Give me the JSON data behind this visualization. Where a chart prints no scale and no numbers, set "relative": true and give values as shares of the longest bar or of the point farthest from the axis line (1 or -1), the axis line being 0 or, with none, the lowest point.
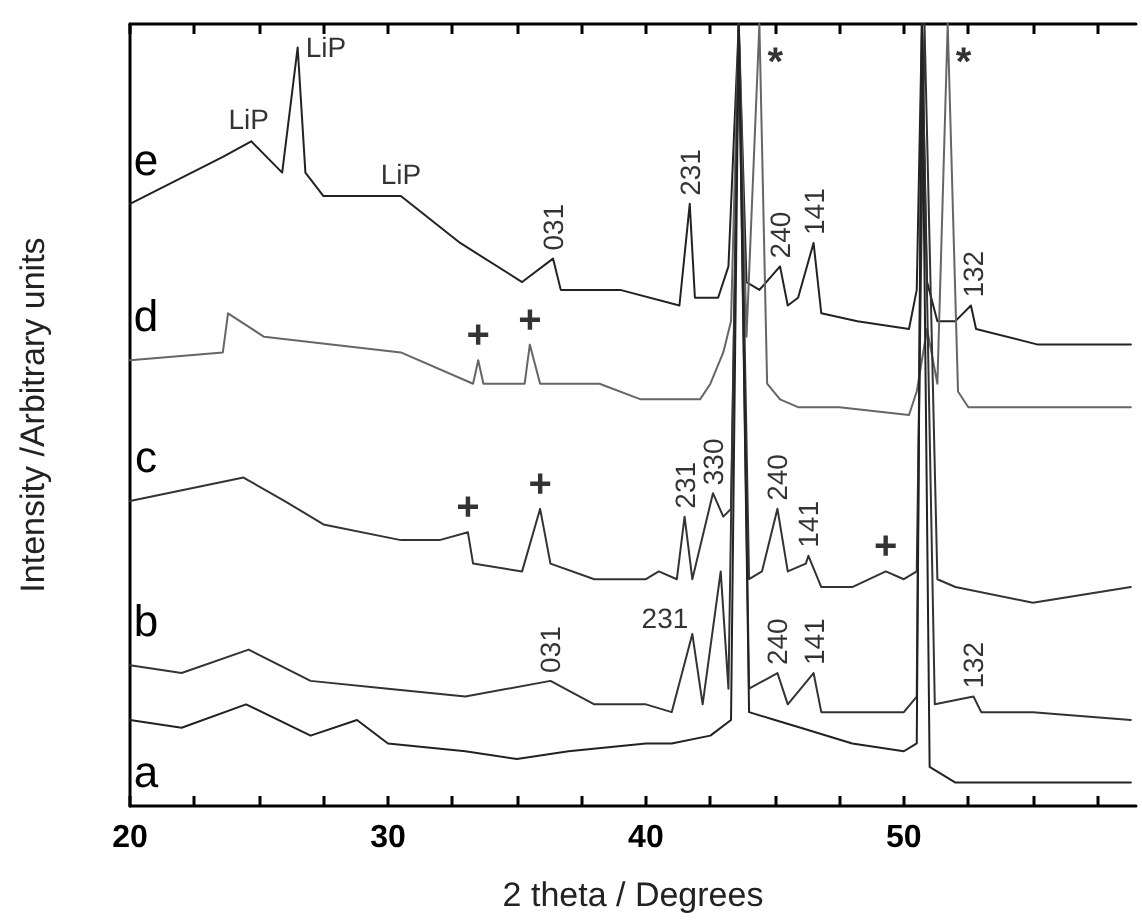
{
  "chart_data": {
    "type": "line",
    "relative": true,
    "xlabel": "2 theta / Degrees",
    "ylabel": "Intensity /Arbitrary units",
    "xlim": [
      20,
      59
    ],
    "xticks": [
      20,
      {
        "value": 22.5,
        "label": null
      },
      {
        "value": 25,
        "label": null
      },
      {
        "value": 27.5,
        "label": null
      },
      30,
      {
        "value": 32.5,
        "label": null
      },
      {
        "value": 35,
        "label": null
      },
      {
        "value": 37.5,
        "label": null
      },
      40,
      {
        "value": 42.5,
        "label": null
      },
      {
        "value": 45,
        "label": null
      },
      {
        "value": 47.5,
        "label": null
      },
      50,
      {
        "value": 52.5,
        "label": null
      },
      {
        "value": 55,
        "label": null
      },
      {
        "value": 57.5,
        "label": null
      }
    ],
    "grid": false,
    "legend": false,
    "marker": "none",
    "line_style": "solid",
    "series": [
      {
        "name": "e",
        "color": "#222222",
        "x": [
          20,
          23.6,
          24.7,
          25.9,
          26.5,
          26.8,
          27.5,
          30.5,
          32.8,
          35.2,
          36.4,
          36.7,
          39,
          41.3,
          41.7,
          41.9,
          42.8,
          43.2,
          43.6,
          43.9,
          44.4,
          45.2,
          45.5,
          45.9,
          46.5,
          46.8,
          48.2,
          50.2,
          50.5,
          50.7,
          50.9,
          51.3,
          52,
          52.6,
          52.8,
          55.2,
          58.8
        ],
        "values": [
          0.77,
          0.83,
          0.85,
          0.81,
          0.97,
          0.81,
          0.78,
          0.78,
          0.72,
          0.67,
          0.7,
          0.66,
          0.66,
          0.64,
          0.77,
          0.65,
          0.65,
          0.69,
          1,
          0.67,
          0.66,
          0.69,
          0.64,
          0.65,
          0.72,
          0.63,
          0.62,
          0.61,
          0.66,
          1,
          0.67,
          0.62,
          0.62,
          0.64,
          0.61,
          0.59,
          0.59
        ]
      },
      {
        "name": "d",
        "color": "#666666",
        "x": [
          20,
          23.6,
          23.8,
          25.2,
          30.5,
          33.3,
          33.5,
          33.7,
          35.3,
          35.5,
          35.9,
          38.2,
          39.8,
          42.1,
          42.5,
          43,
          43.3,
          43.6,
          43.9,
          44.4,
          44.7,
          45.2,
          45.9,
          47.5,
          50.2,
          50.5,
          50.9,
          51.3,
          51.7,
          52.1,
          52.5,
          55.2,
          58.8
        ],
        "values": [
          0.57,
          0.58,
          0.63,
          0.6,
          0.58,
          0.54,
          0.57,
          0.54,
          0.54,
          0.59,
          0.54,
          0.54,
          0.52,
          0.52,
          0.54,
          0.58,
          0.62,
          1,
          0.6,
          1,
          0.54,
          0.52,
          0.51,
          0.51,
          0.5,
          0.53,
          0.61,
          0.54,
          1,
          0.53,
          0.51,
          0.51,
          0.51
        ]
      },
      {
        "name": "c",
        "color": "#333333",
        "x": [
          20,
          24.4,
          26,
          27.5,
          30.5,
          32,
          33.1,
          33.3,
          35.2,
          35.9,
          36.3,
          38,
          40,
          40.5,
          41.2,
          41.5,
          41.8,
          42.6,
          43,
          43.3,
          43.6,
          44,
          44.5,
          45.1,
          45.5,
          46.2,
          46.3,
          46.8,
          48,
          49.3,
          50,
          50.5,
          50.8,
          51.3,
          52,
          55,
          58.8
        ],
        "values": [
          0.39,
          0.42,
          0.39,
          0.36,
          0.34,
          0.34,
          0.35,
          0.31,
          0.3,
          0.38,
          0.31,
          0.29,
          0.29,
          0.3,
          0.29,
          0.37,
          0.29,
          0.4,
          0.37,
          0.38,
          1,
          0.29,
          0.3,
          0.38,
          0.3,
          0.31,
          0.32,
          0.28,
          0.28,
          0.3,
          0.29,
          0.3,
          1,
          0.29,
          0.28,
          0.26,
          0.28
        ]
      },
      {
        "name": "b",
        "color": "#333333",
        "x": [
          20,
          22,
          24.6,
          27,
          30,
          33,
          36.3,
          38,
          40,
          41,
          41.8,
          42.2,
          42.9,
          43.2,
          43.6,
          44,
          45.1,
          45.5,
          46.5,
          46.8,
          48,
          50,
          50.5,
          50.7,
          51.2,
          52.7,
          53,
          55,
          58.8
        ],
        "values": [
          0.18,
          0.17,
          0.2,
          0.16,
          0.15,
          0.14,
          0.16,
          0.13,
          0.13,
          0.12,
          0.22,
          0.13,
          0.3,
          0.15,
          1,
          0.15,
          0.17,
          0.13,
          0.17,
          0.12,
          0.12,
          0.12,
          0.14,
          1,
          0.13,
          0.14,
          0.12,
          0.12,
          0.11
        ]
      },
      {
        "name": "a",
        "color": "#222222",
        "x": [
          20,
          22,
          24.5,
          27,
          28.8,
          30,
          33,
          35,
          37,
          40,
          41,
          42.5,
          43.3,
          43.6,
          44,
          45,
          46,
          48,
          50,
          50.5,
          50.7,
          51,
          52,
          55,
          58.8
        ],
        "values": [
          0.11,
          0.1,
          0.13,
          0.09,
          0.11,
          0.08,
          0.07,
          0.06,
          0.07,
          0.08,
          0.08,
          0.09,
          0.11,
          1,
          0.12,
          0.11,
          0.1,
          0.08,
          0.07,
          0.08,
          1,
          0.05,
          0.03,
          0.03,
          0.03
        ]
      }
    ],
    "annotations": [
      {
        "text": "LiP",
        "x": 24.6,
        "y": 0.85
      },
      {
        "text": "LiP",
        "x": 26.5,
        "y": 0.97
      },
      {
        "text": "LiP",
        "x": 30.5,
        "y": 0.78
      },
      {
        "text": "031",
        "x": 36.4,
        "y": 0.7
      },
      {
        "text": "231",
        "x": 41.7,
        "y": 0.77
      },
      {
        "text": "*",
        "x": 44.4,
        "y": 0.95
      },
      {
        "text": "240",
        "x": 45.2,
        "y": 0.69
      },
      {
        "text": "141",
        "x": 46.5,
        "y": 0.72
      },
      {
        "text": "*",
        "x": 51.7,
        "y": 0.95
      },
      {
        "text": "132",
        "x": 52.7,
        "y": 0.64
      },
      {
        "text": "+",
        "x": 33.5,
        "y": 0.57
      },
      {
        "text": "+",
        "x": 35.5,
        "y": 0.59
      },
      {
        "text": "+",
        "x": 33.1,
        "y": 0.35
      },
      {
        "text": "+",
        "x": 35.9,
        "y": 0.38
      },
      {
        "text": "231",
        "x": 41.5,
        "y": 0.37
      },
      {
        "text": "330",
        "x": 42.6,
        "y": 0.4
      },
      {
        "text": "240",
        "x": 45.1,
        "y": 0.38
      },
      {
        "text": "141",
        "x": 46.3,
        "y": 0.32
      },
      {
        "text": "+",
        "x": 49.3,
        "y": 0.3
      },
      {
        "text": "031",
        "x": 36.3,
        "y": 0.16
      },
      {
        "text": "231",
        "x": 41.8,
        "y": 0.22
      },
      {
        "text": "240",
        "x": 45.1,
        "y": 0.17
      },
      {
        "text": "141",
        "x": 46.5,
        "y": 0.17
      },
      {
        "text": "132",
        "x": 52.7,
        "y": 0.14
      }
    ]
  }
}
